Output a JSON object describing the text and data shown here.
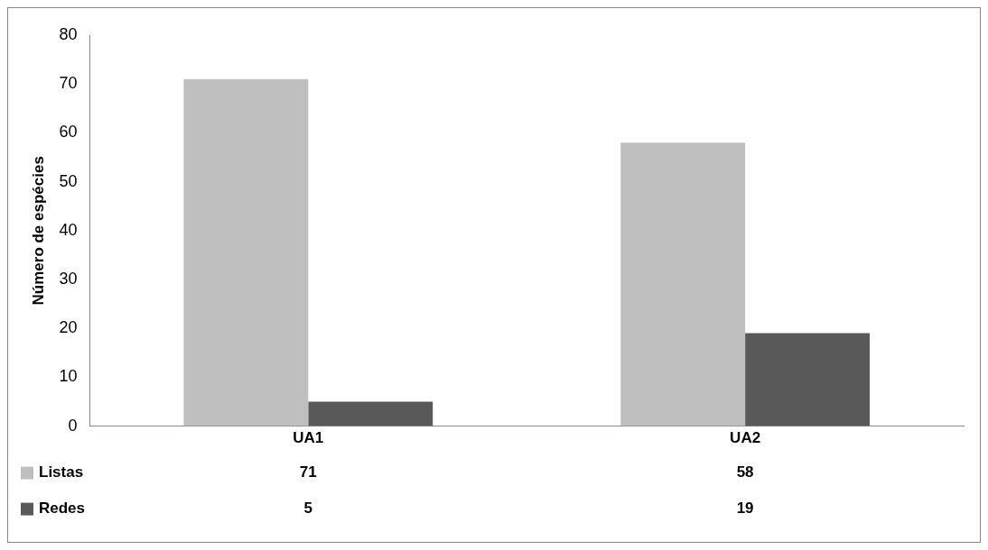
{
  "chart_data": {
    "type": "bar",
    "ylabel": "Número de espécies",
    "categories": [
      "UA1",
      "UA2"
    ],
    "series": [
      {
        "name": "Listas",
        "color": "#bfbfbf",
        "values": [
          71,
          58
        ]
      },
      {
        "name": "Redes",
        "color": "#595959",
        "values": [
          5,
          19
        ]
      }
    ],
    "ylim": [
      0,
      80
    ],
    "yticks": [
      0,
      10,
      20,
      30,
      40,
      50,
      60,
      70,
      80
    ],
    "grid": false,
    "legend": "bottom left",
    "data_labels": true
  }
}
